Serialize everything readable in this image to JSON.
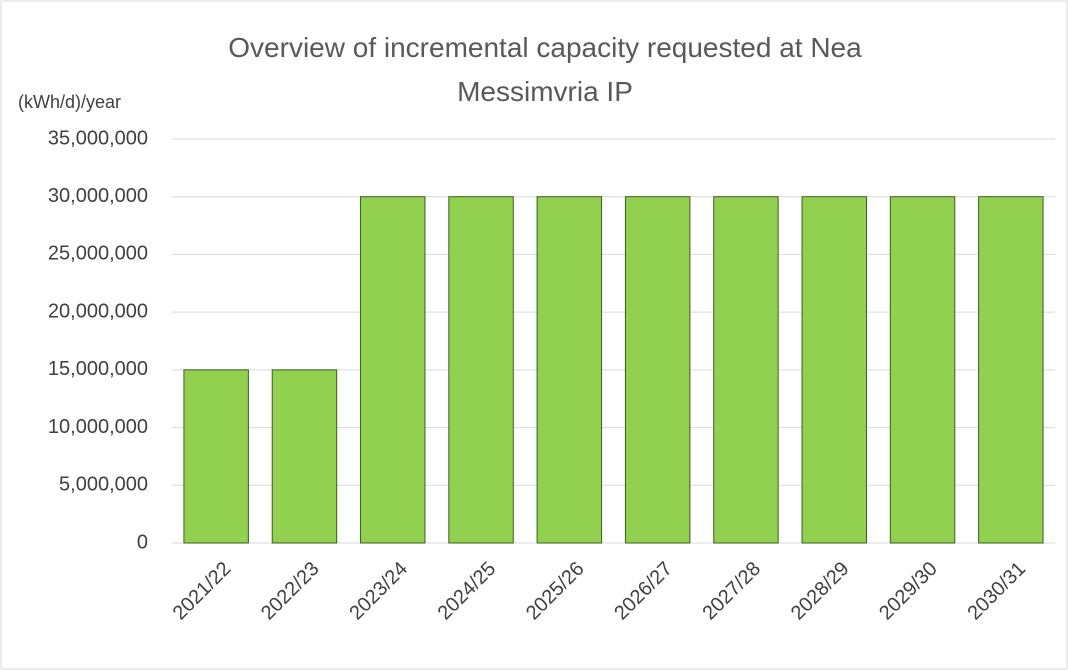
{
  "chart_data": {
    "type": "bar",
    "title": "Overview of incremental capacity requested at Nea Messimvria IP",
    "y_axis_label": "(kWh/d)/year",
    "categories": [
      "2021/22",
      "2022/23",
      "2023/24",
      "2024/25",
      "2025/26",
      "2026/27",
      "2027/28",
      "2028/29",
      "2029/30",
      "2030/31"
    ],
    "values": [
      15000000,
      15000000,
      30000000,
      30000000,
      30000000,
      30000000,
      30000000,
      30000000,
      30000000,
      30000000
    ],
    "color": "#92d050",
    "ylim": [
      0,
      35000000
    ],
    "yticks": [
      0,
      {
        "value": 5000000,
        "label": "5,000,000"
      },
      {
        "value": 10000000,
        "label": "10,000,000"
      },
      {
        "value": 15000000,
        "label": "15,000,000"
      },
      {
        "value": 20000000,
        "label": "20,000,000"
      },
      {
        "value": 25000000,
        "label": "25,000,000"
      },
      {
        "value": 30000000,
        "label": "30,000,000"
      },
      {
        "value": 35000000,
        "label": "35,000,000"
      }
    ],
    "grid": true
  }
}
